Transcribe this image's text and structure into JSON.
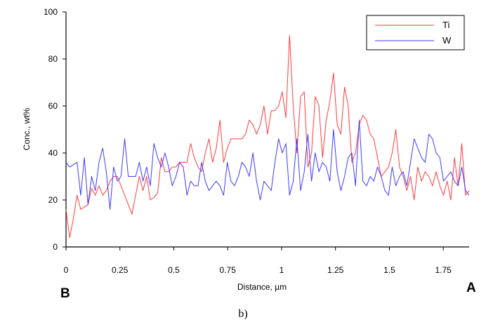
{
  "chart_data": {
    "type": "line",
    "xlabel": "Distance, µm",
    "ylabel": "Conc., wt%",
    "xlim": [
      0,
      1.87
    ],
    "ylim": [
      0,
      100
    ],
    "x_ticks": [
      "0",
      "0.25",
      "0.5",
      "0.75",
      "1",
      "1.25",
      "1.5",
      "1.75"
    ],
    "x_tick_values": [
      0,
      0.25,
      0.5,
      0.75,
      1,
      1.25,
      1.5,
      1.75
    ],
    "y_ticks": [
      "0",
      "20",
      "40",
      "60",
      "80",
      "100"
    ],
    "y_tick_values": [
      0,
      20,
      40,
      60,
      80,
      100
    ],
    "legend_position": "top-right",
    "grid": false,
    "series": [
      {
        "name": "Ti",
        "color": "#ff3b3b",
        "x": [
          0,
          0.017,
          0.034,
          0.051,
          0.068,
          0.085,
          0.102,
          0.119,
          0.136,
          0.153,
          0.17,
          0.187,
          0.204,
          0.221,
          0.238,
          0.255,
          0.272,
          0.289,
          0.306,
          0.323,
          0.34,
          0.357,
          0.374,
          0.391,
          0.408,
          0.425,
          0.442,
          0.459,
          0.476,
          0.493,
          0.51,
          0.527,
          0.544,
          0.561,
          0.578,
          0.595,
          0.612,
          0.629,
          0.646,
          0.663,
          0.68,
          0.697,
          0.714,
          0.731,
          0.748,
          0.765,
          0.782,
          0.799,
          0.816,
          0.833,
          0.85,
          0.867,
          0.884,
          0.901,
          0.918,
          0.935,
          0.952,
          0.969,
          0.986,
          1.003,
          1.02,
          1.037,
          1.054,
          1.071,
          1.088,
          1.105,
          1.122,
          1.139,
          1.156,
          1.173,
          1.19,
          1.207,
          1.224,
          1.241,
          1.258,
          1.275,
          1.292,
          1.309,
          1.326,
          1.343,
          1.36,
          1.377,
          1.394,
          1.411,
          1.428,
          1.445,
          1.462,
          1.479,
          1.496,
          1.513,
          1.53,
          1.547,
          1.564,
          1.581,
          1.598,
          1.615,
          1.632,
          1.649,
          1.666,
          1.683,
          1.7,
          1.717,
          1.734,
          1.751,
          1.768,
          1.785,
          1.802,
          1.819,
          1.836,
          1.853,
          1.87
        ],
        "values": [
          16,
          4,
          12,
          22,
          16,
          17,
          18,
          25,
          22,
          26,
          22,
          24,
          28,
          30,
          30,
          26,
          22,
          18,
          14,
          22,
          30,
          24,
          30,
          20,
          21,
          23,
          38,
          32,
          32,
          34,
          34,
          36,
          36,
          36,
          44,
          38,
          34,
          32,
          40,
          46,
          36,
          42,
          54,
          36,
          42,
          46,
          46,
          46,
          46,
          48,
          54,
          52,
          48,
          52,
          60,
          48,
          58,
          58,
          60,
          66,
          55,
          90,
          60,
          40,
          64,
          66,
          34,
          40,
          64,
          60,
          38,
          54,
          62,
          74,
          52,
          48,
          68,
          60,
          36,
          40,
          52,
          56,
          54,
          48,
          46,
          38,
          30,
          32,
          34,
          40,
          50,
          34,
          30,
          24,
          30,
          20,
          34,
          28,
          32,
          30,
          26,
          32,
          26,
          22,
          28,
          20,
          38,
          26,
          44,
          22,
          24
        ]
      },
      {
        "name": "W",
        "color": "#3b3bff",
        "x": [
          0,
          0.017,
          0.034,
          0.051,
          0.068,
          0.085,
          0.102,
          0.119,
          0.136,
          0.153,
          0.17,
          0.187,
          0.204,
          0.221,
          0.238,
          0.255,
          0.272,
          0.289,
          0.306,
          0.323,
          0.34,
          0.357,
          0.374,
          0.391,
          0.408,
          0.425,
          0.442,
          0.459,
          0.476,
          0.493,
          0.51,
          0.527,
          0.544,
          0.561,
          0.578,
          0.595,
          0.612,
          0.629,
          0.646,
          0.663,
          0.68,
          0.697,
          0.714,
          0.731,
          0.748,
          0.765,
          0.782,
          0.799,
          0.816,
          0.833,
          0.85,
          0.867,
          0.884,
          0.901,
          0.918,
          0.935,
          0.952,
          0.969,
          0.986,
          1.003,
          1.02,
          1.037,
          1.054,
          1.071,
          1.088,
          1.105,
          1.122,
          1.139,
          1.156,
          1.173,
          1.19,
          1.207,
          1.224,
          1.241,
          1.258,
          1.275,
          1.292,
          1.309,
          1.326,
          1.343,
          1.36,
          1.377,
          1.394,
          1.411,
          1.428,
          1.445,
          1.462,
          1.479,
          1.496,
          1.513,
          1.53,
          1.547,
          1.564,
          1.581,
          1.598,
          1.615,
          1.632,
          1.649,
          1.666,
          1.683,
          1.7,
          1.717,
          1.734,
          1.751,
          1.768,
          1.785,
          1.802,
          1.819,
          1.836,
          1.853,
          1.87
        ],
        "values": [
          36,
          34,
          35,
          36,
          22,
          38,
          18,
          30,
          24,
          36,
          42,
          32,
          16,
          34,
          28,
          30,
          46,
          30,
          30,
          30,
          36,
          28,
          34,
          26,
          44,
          38,
          34,
          40,
          34,
          26,
          30,
          36,
          34,
          22,
          28,
          26,
          26,
          36,
          28,
          24,
          26,
          28,
          26,
          22,
          36,
          28,
          26,
          30,
          36,
          34,
          30,
          40,
          28,
          20,
          28,
          26,
          24,
          36,
          46,
          40,
          44,
          22,
          28,
          46,
          24,
          32,
          48,
          28,
          40,
          32,
          36,
          34,
          28,
          50,
          32,
          24,
          30,
          38,
          40,
          26,
          54,
          28,
          26,
          30,
          28,
          34,
          30,
          24,
          22,
          34,
          26,
          30,
          32,
          26,
          36,
          46,
          42,
          38,
          36,
          48,
          46,
          40,
          38,
          28,
          30,
          32,
          28,
          26,
          34,
          24,
          22
        ]
      }
    ],
    "end_labels": {
      "left": "B",
      "right": "A"
    },
    "caption": "b)"
  }
}
